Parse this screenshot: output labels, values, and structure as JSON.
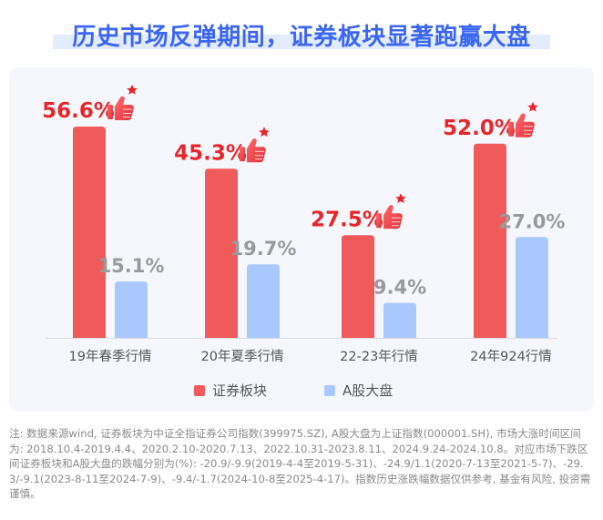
{
  "title": "历史市场反弹期间，证券板块显著跑赢大盘",
  "chart_data": {
    "type": "bar",
    "categories": [
      "19年春季行情",
      "20年夏季行情",
      "22-23年行情",
      "24年924行情"
    ],
    "series": [
      {
        "name": "证券板块",
        "values": [
          56.6,
          45.3,
          27.5,
          52.0
        ],
        "labels": [
          "56.6%",
          "45.3%",
          "27.5%",
          "52.0%"
        ],
        "color": "#f05a5a"
      },
      {
        "name": "A股大盘",
        "values": [
          15.1,
          19.7,
          9.4,
          27.0
        ],
        "labels": [
          "15.1%",
          "19.7%",
          "9.4%",
          "27.0%"
        ],
        "color": "#a9c8fb"
      }
    ],
    "ylim": [
      0,
      60
    ],
    "grid": false,
    "legend": "bottom-center",
    "label_colors": {
      "highlight": "#e8262a",
      "muted": "#9a9a9a"
    },
    "icon": "thumbs-up-icon"
  },
  "note": "注: 数据来源wind, 证券板块为中证全指证券公司指数(399975.SZ), A股大盘为上证指数(000001.SH), 市场大涨时间区间为: 2018.10.4-2019.4.4、2020.2.10-2020.7.13、2022.10.31-2023.8.11、2024.9.24-2024.10.8。对应市场下跌区间证券板块和A股大盘的跌幅分别为(%): -20.9/-9.9(2019-4-4至2019-5-31)、-24.9/1.1(2020-7-13至2021-5-7)、-29.3/-9.1(2023-8-11至2024-7-9)、-9.4/-1.7(2024-10-8至2025-4-17)。指数历史涨跌幅数据仅供参考, 基金有风险, 投资需谨慎。"
}
